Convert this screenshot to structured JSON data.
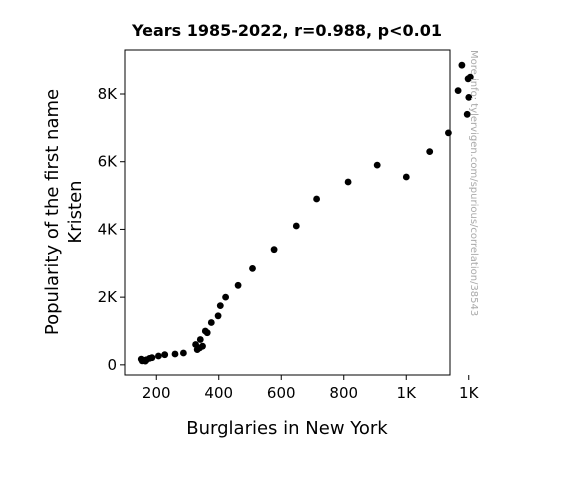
{
  "chart_data": {
    "type": "scatter",
    "title": "Years 1985-2022, r=0.988, p<0.01",
    "xlabel": "Burglaries in New York",
    "ylabel_lines": [
      "Popularity of the first name",
      "Kristen"
    ],
    "xlim": [
      100,
      1140
    ],
    "ylim": [
      -300,
      9300
    ],
    "xticks": [
      {
        "value": 200,
        "label": "200"
      },
      {
        "value": 400,
        "label": "400"
      },
      {
        "value": 600,
        "label": "600"
      },
      {
        "value": 800,
        "label": "800"
      },
      {
        "value": 1000,
        "label": "1K"
      },
      {
        "value": 1200,
        "label": "1K"
      }
    ],
    "yticks": [
      {
        "value": 0,
        "label": "0"
      },
      {
        "value": 2000,
        "label": "2K"
      },
      {
        "value": 4000,
        "label": "4K"
      },
      {
        "value": 6000,
        "label": "6K"
      },
      {
        "value": 8000,
        "label": "8K"
      }
    ],
    "grid": false,
    "point_color": "#000000",
    "watermark": "More info: tylervigen.com/spurious/correlation/38543",
    "points": [
      {
        "x": 1178,
        "y": 8850
      },
      {
        "x": 1205,
        "y": 8500
      },
      {
        "x": 1198,
        "y": 8450
      },
      {
        "x": 1166,
        "y": 8100
      },
      {
        "x": 1200,
        "y": 7900
      },
      {
        "x": 1195,
        "y": 7400
      },
      {
        "x": 1135,
        "y": 6850
      },
      {
        "x": 1075,
        "y": 6300
      },
      {
        "x": 907,
        "y": 5900
      },
      {
        "x": 1000,
        "y": 5550
      },
      {
        "x": 814,
        "y": 5400
      },
      {
        "x": 713,
        "y": 4900
      },
      {
        "x": 648,
        "y": 4100
      },
      {
        "x": 577,
        "y": 3400
      },
      {
        "x": 508,
        "y": 2850
      },
      {
        "x": 462,
        "y": 2350
      },
      {
        "x": 422,
        "y": 2000
      },
      {
        "x": 405,
        "y": 1750
      },
      {
        "x": 398,
        "y": 1450
      },
      {
        "x": 376,
        "y": 1250
      },
      {
        "x": 357,
        "y": 1000
      },
      {
        "x": 363,
        "y": 950
      },
      {
        "x": 341,
        "y": 750
      },
      {
        "x": 326,
        "y": 600
      },
      {
        "x": 348,
        "y": 550
      },
      {
        "x": 339,
        "y": 500
      },
      {
        "x": 331,
        "y": 450
      },
      {
        "x": 287,
        "y": 350
      },
      {
        "x": 260,
        "y": 320
      },
      {
        "x": 227,
        "y": 300
      },
      {
        "x": 207,
        "y": 260
      },
      {
        "x": 186,
        "y": 210
      },
      {
        "x": 178,
        "y": 190
      },
      {
        "x": 152,
        "y": 170
      },
      {
        "x": 168,
        "y": 150
      },
      {
        "x": 160,
        "y": 130
      },
      {
        "x": 155,
        "y": 120
      },
      {
        "x": 165,
        "y": 110
      }
    ]
  }
}
